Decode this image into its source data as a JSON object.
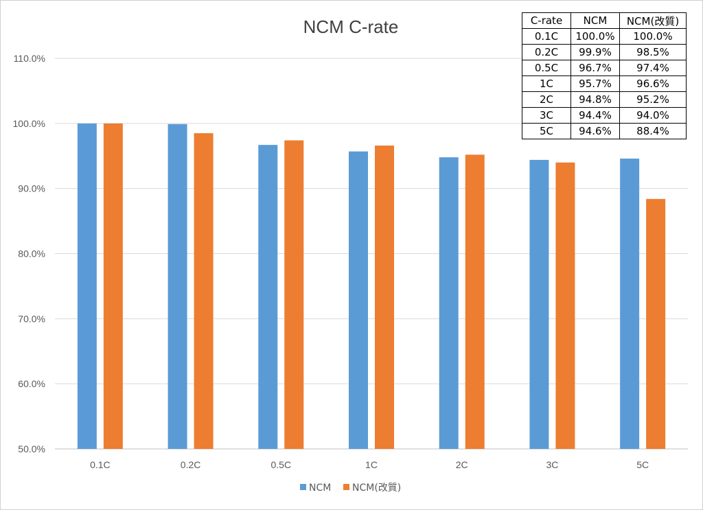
{
  "chart_data": {
    "type": "bar",
    "title": "NCM C-rate",
    "categories": [
      "0.1C",
      "0.2C",
      "0.5C",
      "1C",
      "2C",
      "3C",
      "5C"
    ],
    "series": [
      {
        "name": "NCM",
        "color": "#5b9bd5",
        "values": [
          100.0,
          99.9,
          96.7,
          95.7,
          94.8,
          94.4,
          94.6
        ]
      },
      {
        "name": "NCM(改質)",
        "color": "#ed7d31",
        "values": [
          100.0,
          98.5,
          97.4,
          96.6,
          95.2,
          94.0,
          88.4
        ]
      }
    ],
    "ylim": [
      50,
      110
    ],
    "yticks": [
      "50.0%",
      "60.0%",
      "70.0%",
      "80.0%",
      "90.0%",
      "100.0%",
      "110.0%"
    ],
    "grid": true,
    "legend_position": "bottom",
    "xlabel": "",
    "ylabel": ""
  },
  "table": {
    "headers": [
      "C-rate",
      "NCM",
      "NCM(改質)"
    ],
    "rows": [
      [
        "0.1C",
        "100.0%",
        "100.0%"
      ],
      [
        "0.2C",
        "99.9%",
        "98.5%"
      ],
      [
        "0.5C",
        "96.7%",
        "97.4%"
      ],
      [
        "1C",
        "95.7%",
        "96.6%"
      ],
      [
        "2C",
        "94.8%",
        "95.2%"
      ],
      [
        "3C",
        "94.4%",
        "94.0%"
      ],
      [
        "5C",
        "94.6%",
        "88.4%"
      ]
    ]
  }
}
